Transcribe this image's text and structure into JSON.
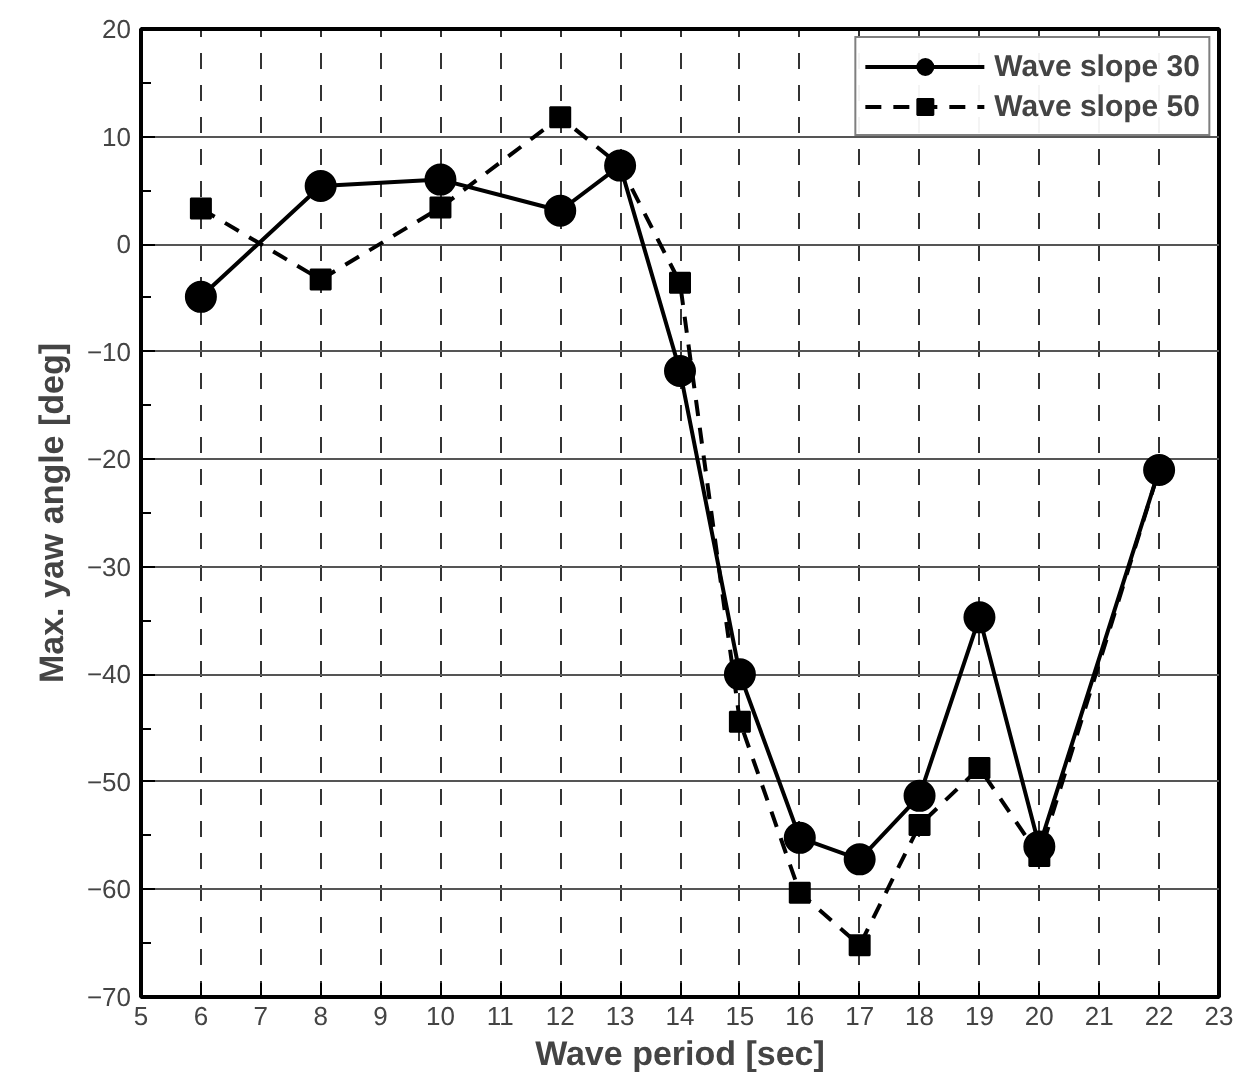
{
  "chart_data": {
    "type": "line",
    "xlabel": "Wave period [sec]",
    "ylabel": "Max. yaw angle [deg]",
    "x": [
      6,
      8,
      10,
      12,
      13,
      14,
      15,
      16,
      17,
      18,
      19,
      20,
      22
    ],
    "series": [
      {
        "name": "Wave slope 30",
        "color": "#000000",
        "marker": "circle",
        "line_style": "solid",
        "values": [
          -4.9,
          5.4,
          6.0,
          3.1,
          7.3,
          -11.8,
          -40.0,
          -55.2,
          -57.2,
          -51.3,
          -34.7,
          -56.0,
          -21.0
        ]
      },
      {
        "name": "Wave slope 50",
        "color": "#000000",
        "marker": "square",
        "line_style": "dashed",
        "values": [
          3.3,
          -3.3,
          3.4,
          11.8,
          7.3,
          -3.6,
          -44.4,
          -60.3,
          -65.2,
          -54.0,
          -48.7,
          -56.9,
          -21.0
        ]
      }
    ],
    "xlim": [
      5,
      23
    ],
    "xticks": [
      5,
      6,
      7,
      8,
      9,
      10,
      11,
      12,
      13,
      14,
      15,
      16,
      17,
      18,
      19,
      20,
      21,
      22,
      23
    ],
    "ylim": [
      -70,
      20
    ],
    "yticks": [
      -70,
      -60,
      -50,
      -40,
      -30,
      -20,
      -10,
      0,
      10,
      20
    ],
    "grid": true,
    "legend": "top right"
  }
}
